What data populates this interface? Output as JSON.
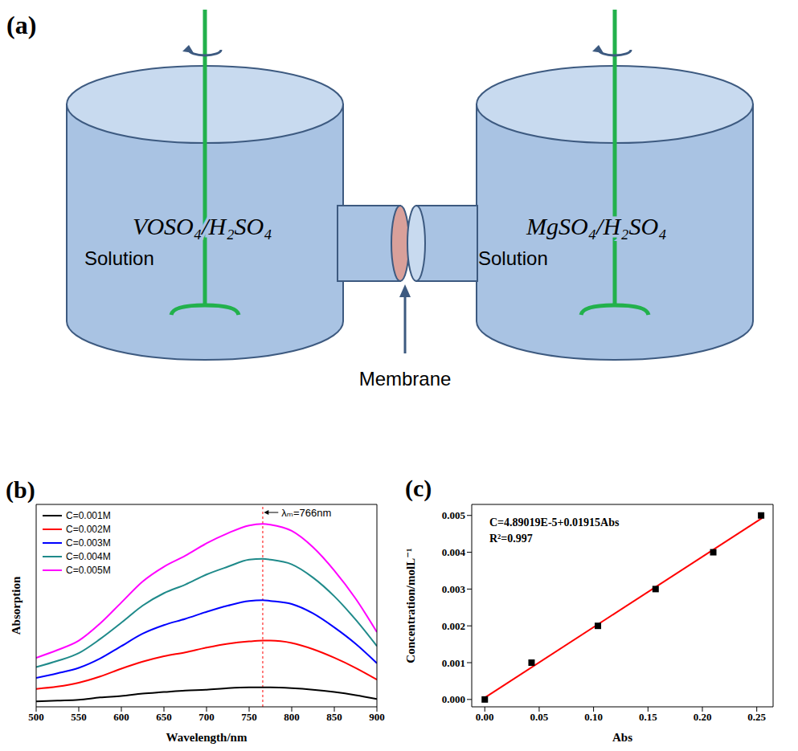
{
  "diagram": {
    "panel_label": "(a)",
    "left_tank": {
      "label": "VOSO₄/H₂SO₄",
      "sublabel": "Solution"
    },
    "right_tank": {
      "label": "MgSO₄/H₂SO₄",
      "sublabel": "Solution"
    },
    "membrane_label": "Membrane"
  },
  "chart_data": [
    {
      "panel_label": "(b)",
      "type": "line",
      "x_label": "Wavelength/nm",
      "y_label": "Absorption",
      "x": [
        500,
        525,
        550,
        575,
        600,
        625,
        650,
        675,
        700,
        725,
        750,
        766,
        775,
        800,
        825,
        850,
        875,
        900
      ],
      "series": [
        {
          "name": "C=0.001M",
          "color": "#000000",
          "values": [
            0.027,
            0.028,
            0.029,
            0.032,
            0.034,
            0.037,
            0.039,
            0.041,
            0.042,
            0.044,
            0.045,
            0.045,
            0.045,
            0.044,
            0.042,
            0.039,
            0.035,
            0.03
          ]
        },
        {
          "name": "C=0.002M",
          "color": "#ff0000",
          "values": [
            0.043,
            0.046,
            0.051,
            0.059,
            0.069,
            0.078,
            0.085,
            0.09,
            0.096,
            0.101,
            0.104,
            0.105,
            0.105,
            0.102,
            0.094,
            0.083,
            0.07,
            0.055
          ]
        },
        {
          "name": "C=0.003M",
          "color": "#0000ff",
          "values": [
            0.057,
            0.063,
            0.07,
            0.082,
            0.098,
            0.114,
            0.125,
            0.133,
            0.142,
            0.15,
            0.156,
            0.157,
            0.156,
            0.152,
            0.14,
            0.122,
            0.101,
            0.076
          ]
        },
        {
          "name": "C=0.004M",
          "color": "#1f8a8a",
          "values": [
            0.071,
            0.079,
            0.089,
            0.107,
            0.128,
            0.15,
            0.166,
            0.177,
            0.19,
            0.2,
            0.209,
            0.21,
            0.209,
            0.203,
            0.186,
            0.162,
            0.132,
            0.098
          ]
        },
        {
          "name": "C=0.005M",
          "color": "#ff00ff",
          "values": [
            0.083,
            0.093,
            0.105,
            0.127,
            0.154,
            0.181,
            0.2,
            0.214,
            0.23,
            0.243,
            0.253,
            0.255,
            0.254,
            0.246,
            0.225,
            0.195,
            0.159,
            0.116
          ]
        }
      ],
      "xlim": [
        500,
        900
      ],
      "xticks": [
        500,
        550,
        600,
        650,
        700,
        750,
        800,
        850,
        900
      ],
      "ylim": [
        0.02,
        0.28
      ],
      "tick_labels": "x",
      "legend": "top-left",
      "annotations": [
        {
          "text": "λₘ=766nm",
          "x": 766,
          "color": "#ff0000"
        }
      ]
    },
    {
      "panel_label": "(c)",
      "type": "scatter",
      "x_label": "Abs",
      "y_label": "Concentration/molL⁻¹",
      "x": [
        0,
        0.043,
        0.104,
        0.157,
        0.21,
        0.254
      ],
      "values": [
        0,
        0.001,
        0.002,
        0.003,
        0.004,
        0.005
      ],
      "color": "#000000",
      "marker": "square",
      "fit": {
        "x": [
          0,
          0.255
        ],
        "values": [
          4.89e-05,
          0.0049322
        ],
        "color": "#ff0000"
      },
      "xlim": [
        -0.012,
        0.265
      ],
      "xticks": [
        {
          "value": 0,
          "label": "0.00"
        },
        {
          "value": 0.05,
          "label": "0.05"
        },
        {
          "value": 0.1,
          "label": "0.10"
        },
        {
          "value": 0.15,
          "label": "0.15"
        },
        {
          "value": 0.2,
          "label": "0.20"
        },
        {
          "value": 0.25,
          "label": "0.25"
        }
      ],
      "ylim": [
        -0.0002,
        0.0053
      ],
      "yticks": [
        {
          "value": 0,
          "label": "0.000"
        },
        {
          "value": 0.001,
          "label": "0.001"
        },
        {
          "value": 0.002,
          "label": "0.002"
        },
        {
          "value": 0.003,
          "label": "0.003"
        },
        {
          "value": 0.004,
          "label": "0.004"
        },
        {
          "value": 0.005,
          "label": "0.005"
        }
      ],
      "annotations": [
        "C=4.89019E-5+0.01915Abs",
        "R²=0.997"
      ]
    }
  ]
}
